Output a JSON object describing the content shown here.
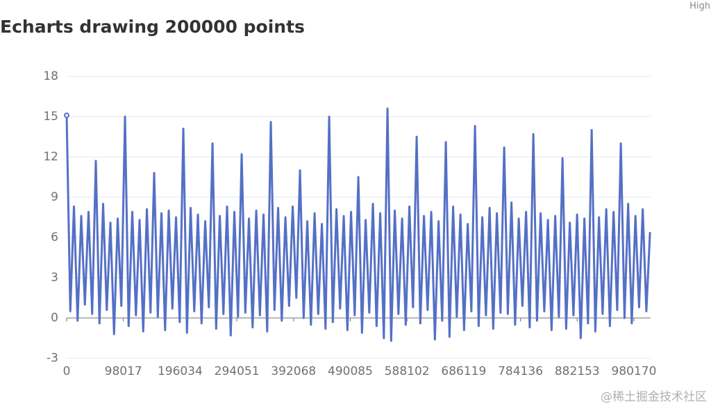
{
  "corner_text": "High",
  "watermark": "@稀土掘金技术社区",
  "chart_data": {
    "type": "line",
    "title": "Echarts drawing 200000 points",
    "color": "#5470c6",
    "grid": true,
    "xlim": [
      0,
      1009000
    ],
    "xticks": [
      0,
      98017,
      196034,
      294051,
      392068,
      490085,
      588102,
      686119,
      784136,
      882153,
      980170
    ],
    "ylim": [
      -3,
      18
    ],
    "yticks": [
      -3,
      0,
      3,
      6,
      9,
      12,
      15,
      18
    ],
    "x": [
      0,
      6300,
      12600,
      18900,
      25200,
      31500,
      37800,
      44100,
      50400,
      56700,
      63000,
      69300,
      75600,
      81900,
      88200,
      94500,
      100800,
      107100,
      113400,
      119700,
      126000,
      132300,
      138600,
      144900,
      151200,
      157500,
      163800,
      170100,
      176400,
      182700,
      189000,
      195300,
      201600,
      207900,
      214200,
      220500,
      226800,
      233100,
      239400,
      245700,
      252000,
      258300,
      264600,
      270900,
      277200,
      283500,
      289800,
      296100,
      302400,
      308700,
      315000,
      321300,
      327600,
      333900,
      340200,
      346500,
      352800,
      359100,
      365400,
      371700,
      378000,
      384300,
      390600,
      396900,
      403200,
      409500,
      415800,
      422100,
      428400,
      434700,
      441000,
      447300,
      453600,
      459900,
      466200,
      472500,
      478800,
      485100,
      491400,
      497700,
      504000,
      510300,
      516600,
      522900,
      529200,
      535500,
      541800,
      548100,
      554400,
      560700,
      567000,
      573300,
      579600,
      585900,
      592200,
      598500,
      604800,
      611100,
      617400,
      623700,
      630000,
      636300,
      642600,
      648900,
      655200,
      661500,
      667800,
      674100,
      680400,
      686700,
      693000,
      699300,
      705600,
      711900,
      718200,
      724500,
      730800,
      737100,
      743400,
      749700,
      756000,
      762300,
      768600,
      774900,
      781200,
      787500,
      793800,
      800100,
      806400,
      812700,
      819000,
      825300,
      831600,
      837900,
      844200,
      850500,
      856800,
      863100,
      869400,
      875700,
      882000,
      888300,
      894600,
      900900,
      907200,
      913500,
      919800,
      926100,
      932400,
      938700,
      945000,
      951300,
      957600,
      963900,
      970200,
      976500,
      982800,
      989100,
      995400,
      1001700,
      1008000
    ],
    "values": [
      15.1,
      0.5,
      8.3,
      -0.2,
      7.6,
      1.0,
      7.9,
      0.3,
      11.7,
      -0.4,
      8.5,
      0.6,
      7.1,
      -1.2,
      7.4,
      0.9,
      15.0,
      -0.6,
      7.9,
      0.2,
      7.3,
      -1.0,
      8.1,
      0.4,
      10.8,
      0.1,
      7.8,
      -0.9,
      8.0,
      0.7,
      7.5,
      -0.3,
      14.1,
      -1.1,
      8.2,
      0.5,
      7.7,
      -0.4,
      7.2,
      0.8,
      13.0,
      -0.8,
      7.6,
      0.3,
      8.3,
      -1.3,
      7.9,
      0.1,
      12.2,
      0.4,
      7.4,
      -0.7,
      8.0,
      0.2,
      7.7,
      -1.0,
      14.6,
      0.6,
      8.2,
      -0.2,
      7.5,
      0.9,
      8.3,
      1.5,
      11.0,
      0.0,
      7.2,
      -0.5,
      7.8,
      0.3,
      7.0,
      -0.8,
      15.0,
      -0.3,
      8.1,
      0.7,
      7.6,
      -0.9,
      7.9,
      0.2,
      10.5,
      -1.1,
      7.3,
      0.4,
      8.5,
      -0.6,
      7.8,
      -1.5,
      15.6,
      -1.7,
      8.0,
      0.3,
      7.4,
      -0.5,
      8.3,
      0.8,
      13.5,
      -0.4,
      7.6,
      0.6,
      7.9,
      -1.6,
      7.2,
      -0.2,
      13.1,
      -1.4,
      8.3,
      0.1,
      7.7,
      -0.9,
      7.0,
      0.5,
      14.3,
      -0.6,
      7.5,
      0.2,
      8.2,
      -0.8,
      7.8,
      0.4,
      12.7,
      0.3,
      8.6,
      -0.5,
      7.4,
      0.9,
      7.9,
      -0.7,
      13.7,
      -0.2,
      7.8,
      0.5,
      7.3,
      -0.9,
      7.6,
      0.1,
      11.9,
      -0.8,
      7.1,
      0.2,
      7.7,
      -1.5,
      7.4,
      -0.4,
      14.0,
      -1.0,
      7.5,
      0.3,
      8.1,
      -0.6,
      7.9,
      0.6,
      13.0,
      0.0,
      8.5,
      -0.4,
      7.6,
      0.8,
      8.1,
      0.5,
      6.4
    ]
  }
}
